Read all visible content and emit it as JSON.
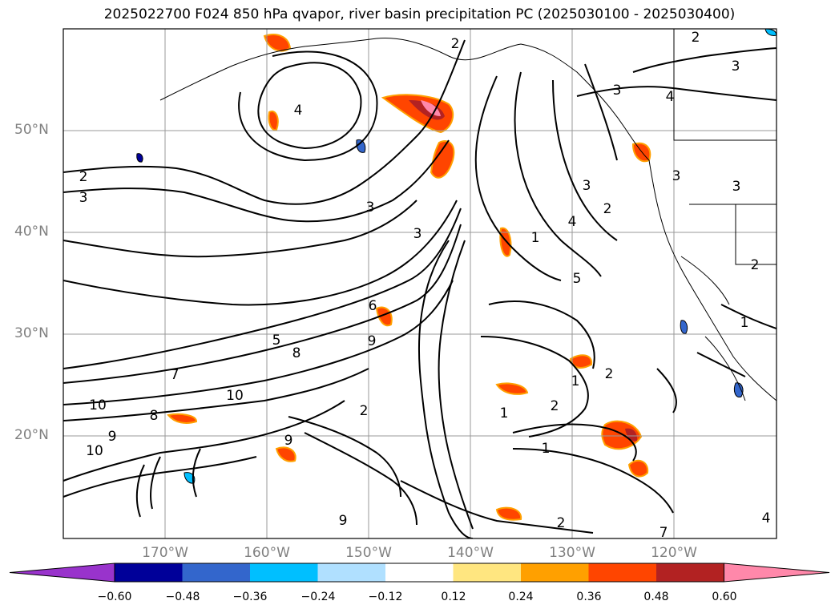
{
  "title": "2025022700 F024 850 hPa qvapor, river basin precipitation PC (2025030100 - 2025030400)",
  "lat_labels": [
    "50°N",
    "40°N",
    "30°N",
    "20°N"
  ],
  "lon_labels": [
    "170°W",
    "160°W",
    "150°W",
    "140°W",
    "130°W",
    "120°W"
  ],
  "colorbar": {
    "ticks": [
      "−0.60",
      "−0.48",
      "−0.36",
      "−0.24",
      "−0.12",
      "0.12",
      "0.24",
      "0.36",
      "0.48",
      "0.60"
    ],
    "colors": [
      "#9933cc",
      "#000099",
      "#3366cc",
      "#00bfff",
      "#b0e0ff",
      "#ffffff",
      "#ffe680",
      "#ffa000",
      "#ff4500",
      "#b22222",
      "#ff88aa"
    ]
  },
  "contour_labels": [
    "2",
    "3",
    "2",
    "4",
    "3",
    "3",
    "4",
    "2",
    "3",
    "3",
    "3",
    "4",
    "3",
    "5",
    "2",
    "1",
    "6",
    "5",
    "8",
    "9",
    "7",
    "10",
    "10",
    "8",
    "9",
    "10",
    "9",
    "9",
    "2",
    "1",
    "2",
    "1",
    "2",
    "1",
    "3",
    "1",
    "2",
    "2",
    "4",
    "7"
  ],
  "grid": true
}
